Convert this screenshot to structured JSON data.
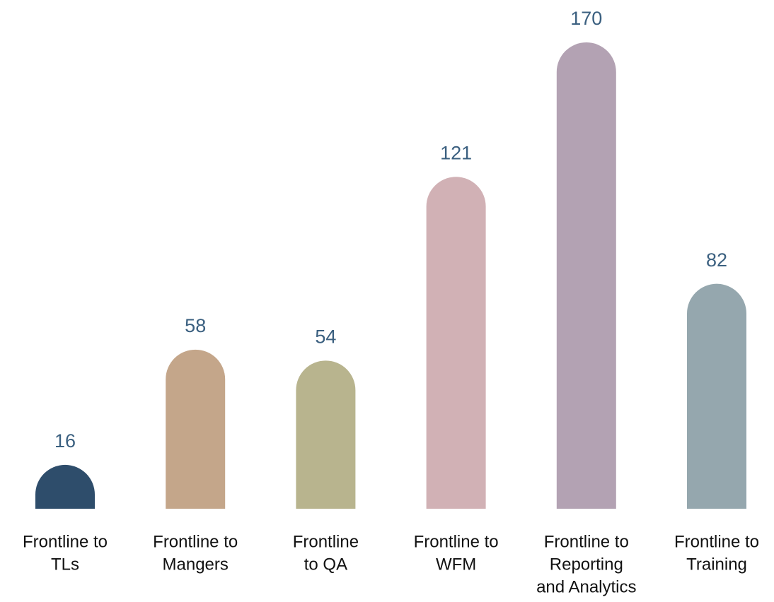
{
  "chart_data": {
    "type": "bar",
    "categories": [
      [
        "Frontline to",
        "TLs"
      ],
      [
        "Frontline to",
        "Mangers"
      ],
      [
        "Frontline",
        "to QA"
      ],
      [
        "Frontline to",
        "WFM"
      ],
      [
        "Frontline to",
        "Reporting",
        "and Analytics"
      ],
      [
        "Frontline to",
        "Training"
      ]
    ],
    "values": [
      16,
      58,
      54,
      121,
      170,
      82
    ],
    "colors": [
      "#2e4d6b",
      "#c4a68a",
      "#b8b48e",
      "#d1b1b5",
      "#b3a2b3",
      "#95a7ae"
    ]
  }
}
